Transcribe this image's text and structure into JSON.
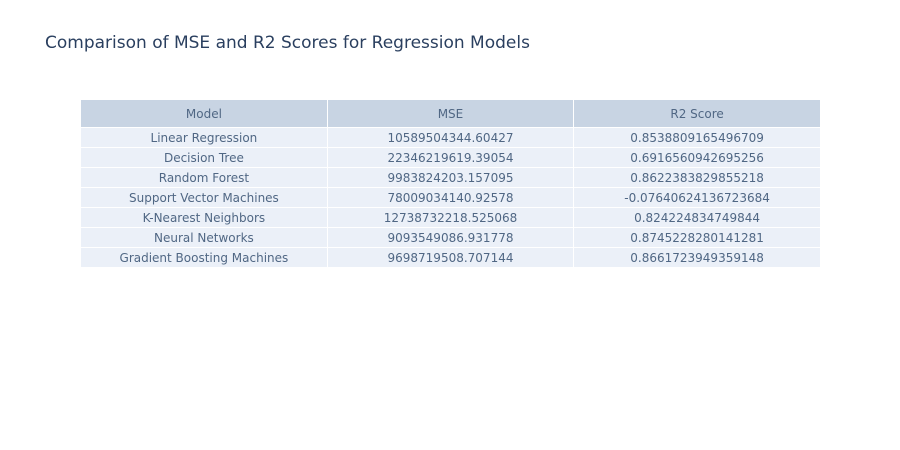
{
  "chart_data": {
    "type": "table",
    "title": "Comparison of MSE and R2 Scores for Regression Models",
    "columns": [
      "Model",
      "MSE",
      "R2 Score"
    ],
    "rows": [
      [
        "Linear Regression",
        "10589504344.60427",
        "0.8538809165496709"
      ],
      [
        "Decision Tree",
        "22346219619.39054",
        "0.6916560942695256"
      ],
      [
        "Random Forest",
        "9983824203.157095",
        "0.8622383829855218"
      ],
      [
        "Support Vector Machines",
        "78009034140.92578",
        "-0.07640624136723684"
      ],
      [
        "K-Nearest Neighbors",
        "12738732218.525068",
        "0.824224834749844"
      ],
      [
        "Neural Networks",
        "9093549086.931778",
        "0.8745228280141281"
      ],
      [
        "Gradient Boosting Machines",
        "9698719508.707144",
        "0.8661723949359148"
      ]
    ],
    "colors": {
      "header_fill": "#c8d4e3",
      "cell_fill": "#ebf0f8",
      "text": "#506784",
      "title": "#2a3f5f"
    }
  }
}
